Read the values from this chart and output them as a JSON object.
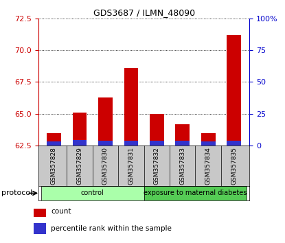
{
  "title": "GDS3687 / ILMN_48090",
  "samples": [
    "GSM357828",
    "GSM357829",
    "GSM357830",
    "GSM357831",
    "GSM357832",
    "GSM357833",
    "GSM357834",
    "GSM357835"
  ],
  "count_values": [
    63.5,
    65.1,
    66.3,
    68.6,
    65.0,
    64.2,
    63.5,
    71.2
  ],
  "percentile_values": [
    0.35,
    0.45,
    0.38,
    0.42,
    0.4,
    0.42,
    0.35,
    0.42
  ],
  "ylim_left": [
    62.5,
    72.5
  ],
  "ylim_right": [
    0,
    100
  ],
  "yticks_left": [
    62.5,
    65.0,
    67.5,
    70.0,
    72.5
  ],
  "yticks_right": [
    0,
    25,
    50,
    75,
    100
  ],
  "ytick_labels_right": [
    "0",
    "25",
    "50",
    "75",
    "100%"
  ],
  "bar_color_red": "#cc0000",
  "bar_color_blue": "#3333cc",
  "bar_baseline": 62.5,
  "bar_width": 0.55,
  "groups": [
    {
      "label": "control",
      "start": 0,
      "end": 3,
      "color": "#aaffaa"
    },
    {
      "label": "exposure to maternal diabetes",
      "start": 4,
      "end": 7,
      "color": "#55cc55"
    }
  ],
  "protocol_label": "protocol",
  "legend_items": [
    {
      "color": "#cc0000",
      "label": "count"
    },
    {
      "color": "#3333cc",
      "label": "percentile rank within the sample"
    }
  ],
  "axis_color_left": "#cc0000",
  "axis_color_right": "#0000cc",
  "tick_label_area_color": "#c8c8c8",
  "title_fontsize": 9
}
